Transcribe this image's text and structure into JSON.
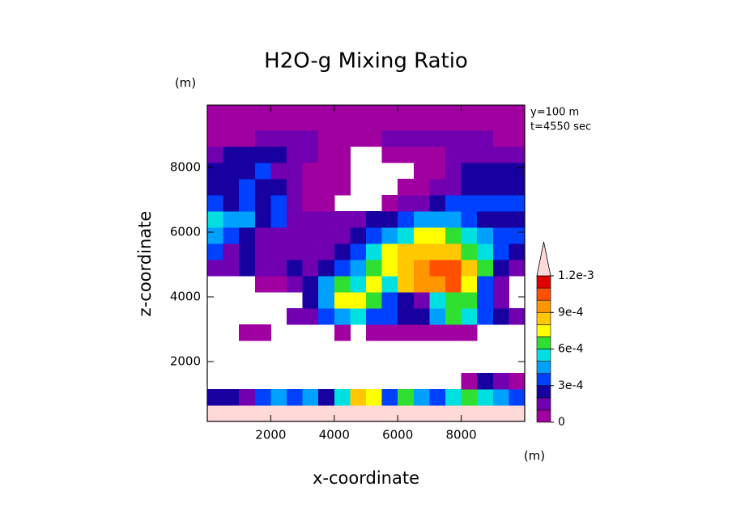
{
  "chart_data": {
    "type": "contour",
    "title": "H2O-g Mixing Ratio",
    "xlabel": "x-coordinate",
    "ylabel": "z-coordinate",
    "xunit": "(m)",
    "yunit": "(m)",
    "annotations": [
      "y=100 m",
      "t=4550 sec"
    ],
    "xlim": [
      0,
      10000
    ],
    "ylim": [
      150,
      9925
    ],
    "xticks": [
      2000,
      4000,
      6000,
      8000
    ],
    "yticks": [
      2000,
      4000,
      6000,
      8000
    ],
    "x": [
      250,
      750,
      1250,
      1750,
      2250,
      2750,
      3250,
      3750,
      4250,
      4750,
      5250,
      5750,
      6250,
      6750,
      7250,
      7750,
      8250,
      8750,
      9250,
      9750
    ],
    "y": [
      400,
      900,
      1400,
      1900,
      2400,
      2900,
      3400,
      3900,
      4400,
      4900,
      5400,
      5900,
      6400,
      6900,
      7400,
      7900,
      8400,
      8900,
      9400,
      9900
    ],
    "z": [
      [
        0.0013,
        0.0013,
        0.0013,
        0.0013,
        0.0013,
        0.0013,
        0.0013,
        0.0013,
        0.0013,
        0.0013,
        0.0013,
        0.0013,
        0.0013,
        0.0013,
        0.0013,
        0.0013,
        0.0013,
        0.0013,
        0.0013,
        0.0013
      ],
      [
        0.0002,
        0.0002,
        0.0001,
        0.0003,
        0.0004,
        0.0003,
        0.0004,
        0.0002,
        0.0005,
        0.0008,
        0.0007,
        0.0003,
        0.0006,
        0.0004,
        0.0003,
        0.0005,
        0.0006,
        0.0005,
        0.0004,
        0.0003
      ],
      [
        null,
        null,
        null,
        null,
        null,
        null,
        null,
        null,
        null,
        null,
        null,
        null,
        null,
        null,
        null,
        null,
        0,
        0.0002,
        0.0001,
        0
      ],
      [
        null,
        null,
        null,
        null,
        null,
        null,
        null,
        null,
        null,
        null,
        null,
        null,
        null,
        null,
        null,
        null,
        null,
        null,
        null,
        null
      ],
      [
        null,
        null,
        null,
        null,
        null,
        null,
        null,
        null,
        null,
        null,
        null,
        null,
        null,
        null,
        null,
        null,
        null,
        null,
        null,
        null
      ],
      [
        null,
        null,
        0,
        0,
        null,
        null,
        null,
        null,
        0,
        null,
        0,
        0,
        0,
        0,
        0,
        0,
        0,
        null,
        null,
        null
      ],
      [
        null,
        null,
        null,
        null,
        null,
        0.0001,
        0.0001,
        0.0003,
        0.0004,
        0.0005,
        0.0003,
        0.0003,
        0.0002,
        0.0002,
        0.0004,
        0.0006,
        0.0005,
        0.0003,
        0.0002,
        0.0001
      ],
      [
        null,
        null,
        null,
        null,
        null,
        null,
        0.0002,
        0.0004,
        0.0007,
        0.0007,
        0.0006,
        0.0003,
        0.0002,
        0.0001,
        0.0005,
        0.0006,
        0.0006,
        0.0003,
        0.0001,
        null
      ],
      [
        null,
        null,
        null,
        0,
        0,
        0.0001,
        0.0002,
        0.0004,
        0.0006,
        0.0005,
        0.0007,
        0.0005,
        0.0008,
        0.0009,
        0.0009,
        0.001,
        0.0007,
        0.0003,
        0.0001,
        null
      ],
      [
        0.0001,
        0.0001,
        0.0002,
        0.0001,
        0.0001,
        0.0002,
        0.0001,
        0.0002,
        0.0003,
        0.0004,
        0.0006,
        0.0007,
        0.0008,
        0.0009,
        0.001,
        0.001,
        0.0008,
        0.0006,
        0.0002,
        0.0001
      ],
      [
        0.0003,
        0.0001,
        0.0002,
        0.0001,
        0.0001,
        0.0001,
        0.0001,
        0.0001,
        0.0002,
        0.0003,
        0.0005,
        0.0007,
        0.0008,
        0.0008,
        0.0008,
        0.0008,
        0.0006,
        0.0005,
        0.0003,
        0.0002
      ],
      [
        0.0004,
        0.0003,
        0.0002,
        0.0001,
        0.0001,
        0.0001,
        0.0001,
        0.0001,
        0.0001,
        0.0002,
        0.0003,
        0.0004,
        0.0005,
        0.0007,
        0.0007,
        0.0006,
        0.0005,
        0.0004,
        0.0003,
        0.0003
      ],
      [
        0.0005,
        0.0004,
        0.0004,
        0.0002,
        0.0003,
        0.0001,
        0.0001,
        0.0001,
        0.0001,
        0.0001,
        0.0002,
        0.0002,
        0.0003,
        0.0004,
        0.0004,
        0.0004,
        0.0003,
        0.0002,
        0.0002,
        0.0002
      ],
      [
        0.0003,
        0.0002,
        0.0003,
        0.0002,
        0.0003,
        0.0001,
        0,
        0,
        null,
        null,
        null,
        0,
        0.0001,
        0.0001,
        0.0002,
        0.0003,
        0.0003,
        0.0003,
        0.0003,
        0.0003
      ],
      [
        0.0002,
        0.0002,
        0.0003,
        0.0002,
        0.0002,
        0.0001,
        0,
        0,
        0,
        null,
        null,
        null,
        0,
        0,
        0.0001,
        0.0001,
        0.0002,
        0.0002,
        0.0002,
        0.0002
      ],
      [
        0.0002,
        0.0002,
        0.0002,
        0.0003,
        0.0001,
        0.0001,
        0,
        0,
        0,
        null,
        null,
        null,
        null,
        0,
        0,
        0.0001,
        0.0002,
        0.0002,
        0.0002,
        0.0002
      ],
      [
        0.0001,
        0.0002,
        0.0002,
        0.0002,
        0.0002,
        0.0001,
        0.0001,
        0,
        0,
        null,
        null,
        0,
        0,
        0,
        0,
        0.0001,
        0.0001,
        0.0001,
        0.0001,
        0.0001
      ],
      [
        0,
        0,
        0,
        0.0001,
        0.0001,
        0.0001,
        0.0001,
        0,
        0,
        0,
        0,
        0.0001,
        0.0001,
        0.0001,
        0.0001,
        0.0001,
        0.0001,
        0.0001,
        0,
        0
      ],
      [
        0,
        0,
        0,
        0,
        0,
        0,
        0,
        0,
        0,
        0,
        0,
        0,
        0,
        0,
        0,
        0,
        0,
        0,
        0,
        0
      ],
      [
        0,
        0,
        0,
        0,
        0,
        0,
        0,
        0,
        0,
        0,
        0,
        0,
        0,
        0,
        0,
        0,
        0,
        0,
        0,
        0
      ]
    ],
    "levels": [
      0,
      0.0001,
      0.0002,
      0.0003,
      0.0004,
      0.0005,
      0.0006,
      0.0007,
      0.0008,
      0.0009,
      0.001,
      0.0011,
      0.0012
    ],
    "colors": [
      "#a000a0",
      "#7000b0",
      "#1800a0",
      "#0040ff",
      "#00a0ff",
      "#00e0e0",
      "#30e030",
      "#ffff00",
      "#ffc800",
      "#ff9600",
      "#ff5000",
      "#e00000"
    ],
    "extend_color": "#ffd8d8",
    "cticks": [
      0,
      {
        "value": 0.0003,
        "label": "3e-4"
      },
      {
        "value": 0.0006,
        "label": "6e-4"
      },
      {
        "value": 0.0009,
        "label": "9e-4"
      },
      {
        "value": 0.0012,
        "label": "1.2e-3"
      }
    ]
  }
}
